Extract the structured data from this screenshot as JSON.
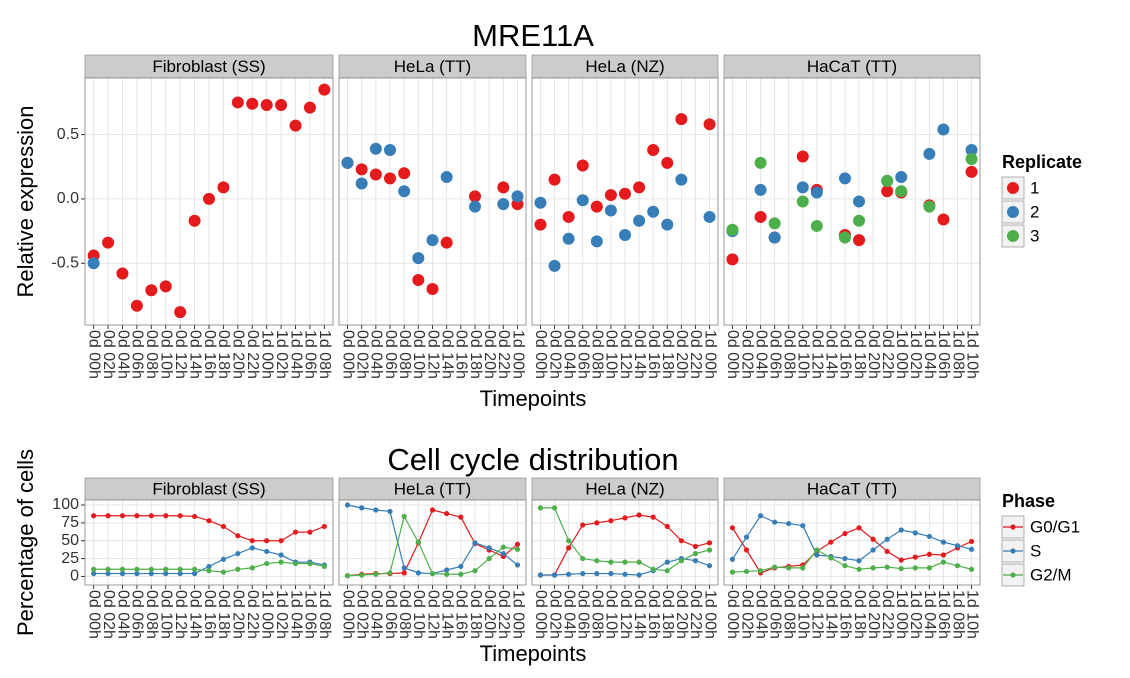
{
  "chart_data": [
    {
      "type": "scatter",
      "title": "MRE11A",
      "x_label": "Timepoints",
      "y_label": "Relative expression",
      "legend_title": "Replicate",
      "legend": "right",
      "grid": true,
      "series": [
        {
          "name": "1",
          "color": "#e41a1c"
        },
        {
          "name": "2",
          "color": "#377eb8"
        },
        {
          "name": "3",
          "color": "#4daf4a"
        }
      ],
      "ylim": [
        -0.98,
        0.94
      ],
      "yticks": [
        -0.5,
        {
          "value": 0,
          "label": "0.0"
        },
        0.5
      ],
      "facets": [
        {
          "title": "Fibroblast (SS)",
          "categories": [
            "0d 00h",
            "0d 02h",
            "0d 04h",
            "0d 06h",
            "0d 08h",
            "0d 10h",
            "0d 12h",
            "0d 14h",
            "0d 16h",
            "0d 18h",
            "0d 20h",
            "0d 22h",
            "1d 00h",
            "1d 02h",
            "1d 04h",
            "1d 06h",
            "1d 08h"
          ],
          "values": [
            [
              -0.44,
              -0.34,
              -0.58,
              -0.83,
              -0.71,
              -0.68,
              -0.88,
              -0.17,
              0.0,
              0.09,
              0.75,
              0.74,
              0.73,
              0.73,
              0.57,
              0.71,
              0.85
            ],
            [
              -0.5,
              null,
              null,
              null,
              null,
              null,
              null,
              null,
              null,
              null,
              null,
              null,
              null,
              null,
              null,
              null,
              null
            ]
          ]
        },
        {
          "title": "HeLa (TT)",
          "categories": [
            "0d 00h",
            "0d 02h",
            "0d 04h",
            "0d 06h",
            "0d 08h",
            "0d 10h",
            "0d 12h",
            "0d 14h",
            "0d 16h",
            "0d 18h",
            "0d 20h",
            "0d 22h",
            "1d 00h"
          ],
          "values": [
            [
              0.28,
              0.23,
              0.19,
              0.16,
              0.2,
              -0.63,
              -0.7,
              -0.34,
              null,
              0.02,
              null,
              0.09,
              -0.04
            ],
            [
              0.28,
              0.12,
              0.39,
              0.38,
              0.06,
              -0.46,
              -0.32,
              0.17,
              null,
              -0.06,
              null,
              -0.04,
              0.02
            ]
          ]
        },
        {
          "title": "HeLa (NZ)",
          "categories": [
            "0d 00h",
            "0d 02h",
            "0d 04h",
            "0d 06h",
            "0d 08h",
            "0d 10h",
            "0d 12h",
            "0d 14h",
            "0d 16h",
            "0d 18h",
            "0d 20h",
            "0d 22h",
            "1d 00h"
          ],
          "values": [
            [
              -0.2,
              0.15,
              -0.14,
              0.26,
              -0.06,
              0.03,
              0.04,
              0.09,
              0.38,
              0.28,
              0.62,
              null,
              0.58
            ],
            [
              -0.03,
              -0.52,
              -0.31,
              -0.01,
              -0.33,
              -0.09,
              -0.28,
              -0.17,
              -0.1,
              -0.2,
              0.15,
              null,
              -0.14
            ]
          ]
        },
        {
          "title": "HaCaT (TT)",
          "categories": [
            "0d 00h",
            "0d 02h",
            "0d 04h",
            "0d 06h",
            "0d 08h",
            "0d 10h",
            "0d 12h",
            "0d 14h",
            "0d 16h",
            "0d 18h",
            "0d 20h",
            "0d 22h",
            "1d 00h",
            "1d 02h",
            "1d 04h",
            "1d 06h",
            "1d 08h",
            "1d 10h"
          ],
          "values": [
            [
              -0.47,
              null,
              -0.14,
              -0.3,
              null,
              0.33,
              0.07,
              null,
              -0.28,
              -0.32,
              null,
              0.06,
              0.05,
              null,
              -0.05,
              -0.16,
              null,
              0.21
            ],
            [
              -0.25,
              null,
              0.07,
              -0.3,
              null,
              0.09,
              0.05,
              null,
              0.16,
              -0.02,
              null,
              0.14,
              0.17,
              null,
              0.35,
              0.54,
              null,
              0.38
            ],
            [
              -0.24,
              null,
              0.28,
              -0.19,
              null,
              -0.02,
              -0.21,
              null,
              -0.3,
              -0.17,
              null,
              0.14,
              0.06,
              null,
              -0.06,
              null,
              null,
              0.31
            ]
          ]
        }
      ]
    },
    {
      "type": "line",
      "title": "Cell cycle distribution",
      "x_label": "Timepoints",
      "y_label": "Percentage of cells",
      "legend_title": "Phase",
      "legend": "right",
      "grid": true,
      "series": [
        {
          "name": "G0/G1",
          "color": "#e41a1c"
        },
        {
          "name": "S",
          "color": "#377eb8"
        },
        {
          "name": "G2/M",
          "color": "#4daf4a"
        }
      ],
      "ylim": [
        -12,
        107
      ],
      "yticks": [
        0,
        25,
        50,
        75,
        100
      ],
      "facets": [
        {
          "title": "Fibroblast (SS)",
          "categories": [
            "0d 00h",
            "0d 02h",
            "0d 04h",
            "0d 06h",
            "0d 08h",
            "0d 10h",
            "0d 12h",
            "0d 14h",
            "0d 16h",
            "0d 18h",
            "0d 20h",
            "0d 22h",
            "1d 00h",
            "1d 02h",
            "1d 04h",
            "1d 06h",
            "1d 08h"
          ],
          "values": [
            [
              85,
              85,
              85,
              85,
              85,
              85,
              85,
              84,
              78,
              70,
              57,
              50,
              50,
              50,
              62,
              62,
              70
            ],
            [
              4,
              4,
              4,
              4,
              4,
              4,
              4,
              4,
              14,
              24,
              32,
              40,
              35,
              30,
              20,
              20,
              16
            ],
            [
              10,
              10,
              10,
              10,
              10,
              10,
              10,
              10,
              8,
              6,
              10,
              12,
              18,
              20,
              18,
              18,
              14
            ]
          ]
        },
        {
          "title": "HeLa (TT)",
          "categories": [
            "0d 00h",
            "0d 02h",
            "0d 04h",
            "0d 06h",
            "0d 08h",
            "0d 10h",
            "0d 12h",
            "0d 14h",
            "0d 16h",
            "0d 18h",
            "0d 20h",
            "0d 22h",
            "1d 00h"
          ],
          "values": [
            [
              1,
              3,
              4,
              4,
              5,
              47,
              93,
              88,
              83,
              46,
              37,
              28,
              45
            ],
            [
              100,
              96,
              93,
              91,
              12,
              5,
              4,
              9,
              14,
              47,
              40,
              32,
              16
            ],
            [
              1,
              2,
              3,
              5,
              84,
              48,
              4,
              3,
              3,
              8,
              25,
              41,
              38
            ]
          ]
        },
        {
          "title": "HeLa (NZ)",
          "categories": [
            "0d 00h",
            "0d 02h",
            "0d 04h",
            "0d 06h",
            "0d 08h",
            "0d 10h",
            "0d 12h",
            "0d 14h",
            "0d 16h",
            "0d 18h",
            "0d 20h",
            "0d 22h",
            "1d 00h"
          ],
          "values": [
            [
              2,
              2,
              40,
              72,
              75,
              78,
              82,
              86,
              83,
              70,
              50,
              42,
              47
            ],
            [
              2,
              2,
              3,
              4,
              4,
              4,
              3,
              2,
              8,
              20,
              25,
              22,
              15
            ],
            [
              96,
              96,
              50,
              25,
              22,
              20,
              20,
              20,
              10,
              8,
              22,
              32,
              37
            ]
          ]
        },
        {
          "title": "HaCaT (TT)",
          "categories": [
            "0d 00h",
            "0d 02h",
            "0d 04h",
            "0d 06h",
            "0d 08h",
            "0d 10h",
            "0d 12h",
            "0d 14h",
            "0d 16h",
            "0d 18h",
            "0d 20h",
            "0d 22h",
            "1d 00h",
            "1d 02h",
            "1d 04h",
            "1d 06h",
            "1d 08h",
            "1d 10h"
          ],
          "values": [
            [
              68,
              37,
              5,
              12,
              14,
              16,
              35,
              48,
              60,
              68,
              52,
              35,
              23,
              27,
              31,
              30,
              40,
              49
            ],
            [
              24,
              55,
              85,
              76,
              74,
              71,
              30,
              28,
              25,
              22,
              37,
              52,
              65,
              61,
              56,
              48,
              43,
              38
            ],
            [
              6,
              7,
              8,
              13,
              12,
              12,
              37,
              26,
              15,
              10,
              12,
              13,
              11,
              12,
              12,
              20,
              15,
              10
            ]
          ]
        }
      ]
    }
  ]
}
